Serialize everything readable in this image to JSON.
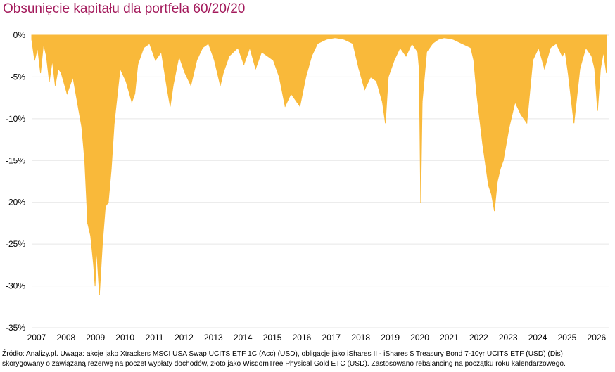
{
  "title": "Obsunięcie kapitału dla portfela 60/20/20",
  "footer": {
    "line1": "Źródło: Analizy.pl. Uwaga: akcje jako Xtrackers MSCI USA Swap UCITS ETF 1C (Acc) (USD), obligacje jako iShares II - iShares $ Treasury Bond 7-10yr UCITS ETF (USD) (Dis)",
    "line2": "skorygowany o zawiązaną rezerwę na poczet wypłaty dochodów, złoto jako WisdomTree Physical Gold ETC (USD). Zastosowano rebalancing na początku roku kalendarzowego."
  },
  "chart_data": {
    "type": "area",
    "title": "Obsunięcie kapitału dla portfela 60/20/20",
    "color": "#f9b93a",
    "ylim": [
      -35,
      0
    ],
    "y_ticks": [
      0,
      -5,
      -10,
      -15,
      -20,
      -25,
      -30,
      -35
    ],
    "y_tick_labels": [
      "0%",
      "-5%",
      "-10%",
      "-15%",
      "-20%",
      "-25%",
      "-30%",
      "-35%"
    ],
    "x_tick_labels": [
      "2007",
      "2008",
      "2009",
      "2010",
      "2011",
      "2012",
      "2013",
      "2014",
      "2015",
      "2016",
      "2017",
      "2018",
      "2019",
      "2020",
      "2021",
      "2022",
      "2023",
      "2024",
      "2025",
      "2026"
    ],
    "grid": true,
    "x": [
      2007.0,
      2007.1,
      2007.2,
      2007.3,
      2007.4,
      2007.5,
      2007.6,
      2007.7,
      2007.8,
      2007.9,
      2008.0,
      2008.2,
      2008.4,
      2008.6,
      2008.7,
      2008.8,
      2008.9,
      2009.0,
      2009.1,
      2009.15,
      2009.2,
      2009.3,
      2009.4,
      2009.5,
      2009.6,
      2009.7,
      2009.8,
      2010.0,
      2010.2,
      2010.4,
      2010.5,
      2010.6,
      2010.8,
      2011.0,
      2011.2,
      2011.4,
      2011.6,
      2011.7,
      2011.8,
      2012.0,
      2012.2,
      2012.4,
      2012.6,
      2012.8,
      2013.0,
      2013.2,
      2013.4,
      2013.5,
      2013.7,
      2014.0,
      2014.2,
      2014.4,
      2014.6,
      2014.8,
      2015.0,
      2015.2,
      2015.4,
      2015.6,
      2015.8,
      2016.0,
      2016.1,
      2016.3,
      2016.5,
      2016.7,
      2017.0,
      2017.3,
      2017.6,
      2017.9,
      2018.1,
      2018.3,
      2018.5,
      2018.7,
      2018.9,
      2019.0,
      2019.1,
      2019.3,
      2019.5,
      2019.7,
      2019.9,
      2020.1,
      2020.15,
      2020.2,
      2020.25,
      2020.4,
      2020.6,
      2020.8,
      2021.0,
      2021.3,
      2021.6,
      2021.9,
      2022.0,
      2022.1,
      2022.2,
      2022.3,
      2022.4,
      2022.5,
      2022.6,
      2022.7,
      2022.8,
      2022.9,
      2023.0,
      2023.2,
      2023.4,
      2023.6,
      2023.8,
      2024.0,
      2024.2,
      2024.4,
      2024.6,
      2024.8,
      2025.0,
      2025.1,
      2025.2,
      2025.3,
      2025.4,
      2025.6,
      2025.8,
      2026.0,
      2026.1,
      2026.2,
      2026.3,
      2026.4,
      2026.5
    ],
    "values": [
      -0.5,
      -3.0,
      -1.5,
      -4.5,
      -1.0,
      -2.5,
      -5.5,
      -3.0,
      -6.0,
      -4.0,
      -4.5,
      -7.0,
      -5.0,
      -9.0,
      -11.0,
      -15.0,
      -22.5,
      -24.0,
      -27.5,
      -30.0,
      -25.5,
      -31.0,
      -25.0,
      -20.5,
      -20.0,
      -16.0,
      -10.5,
      -4.0,
      -5.5,
      -8.0,
      -7.0,
      -3.5,
      -1.5,
      -1.0,
      -3.0,
      -2.0,
      -6.5,
      -8.5,
      -6.0,
      -2.5,
      -4.5,
      -6.0,
      -3.0,
      -1.5,
      -1.0,
      -3.0,
      -6.0,
      -4.5,
      -2.5,
      -1.5,
      -3.5,
      -1.5,
      -4.0,
      -2.0,
      -2.5,
      -3.0,
      -5.0,
      -8.5,
      -7.0,
      -8.0,
      -8.5,
      -5.0,
      -2.5,
      -1.0,
      -0.5,
      -0.3,
      -0.5,
      -1.0,
      -4.0,
      -6.5,
      -5.0,
      -5.5,
      -8.0,
      -10.5,
      -5.0,
      -3.0,
      -1.5,
      -2.5,
      -1.0,
      -2.0,
      -4.0,
      -20.0,
      -8.0,
      -2.0,
      -1.0,
      -0.5,
      -0.3,
      -0.5,
      -1.0,
      -1.5,
      -3.0,
      -7.0,
      -10.0,
      -13.0,
      -15.5,
      -18.0,
      -19.0,
      -21.0,
      -17.5,
      -16.0,
      -15.0,
      -11.0,
      -8.0,
      -9.5,
      -10.5,
      -3.0,
      -1.5,
      -4.0,
      -1.5,
      -1.0,
      -2.5,
      -2.0,
      -4.5,
      -7.5,
      -10.5,
      -4.0,
      -1.5,
      -2.5,
      -4.0,
      -9.0,
      -4.0,
      -2.0,
      -4.5
    ]
  }
}
